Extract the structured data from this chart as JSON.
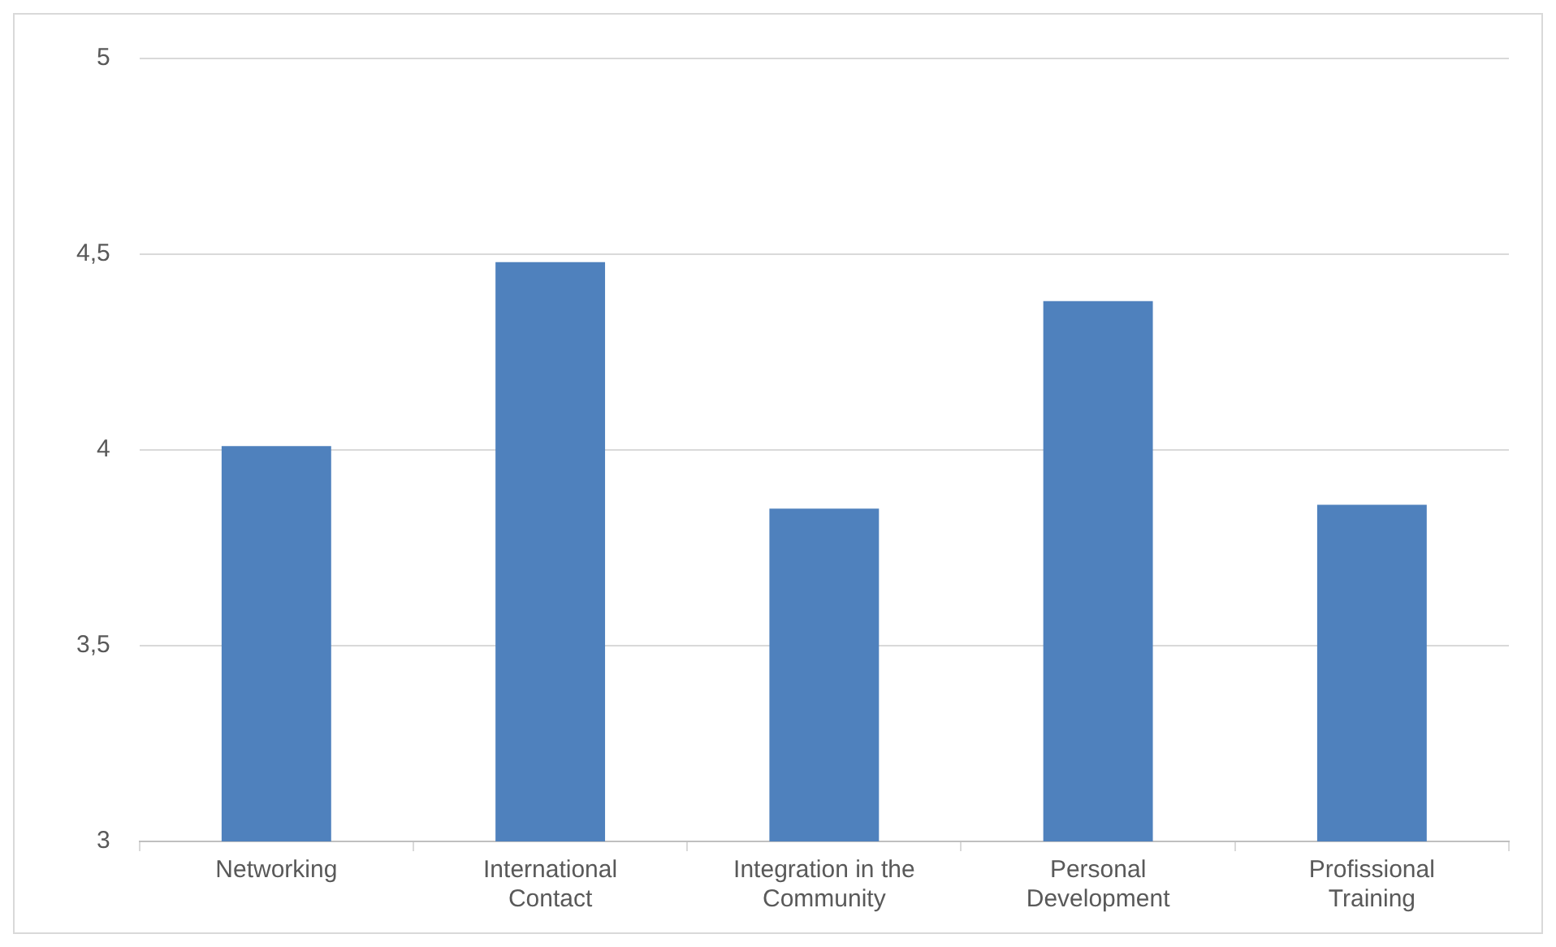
{
  "chart_data": {
    "type": "bar",
    "categories": [
      "Networking",
      "International Contact",
      "Integration in the Community",
      "Personal Development",
      "Profissional Training"
    ],
    "values": [
      4.01,
      4.48,
      3.85,
      4.38,
      3.86
    ],
    "color": "#4f81bd",
    "ylim": [
      3,
      5
    ],
    "yticks": [
      3,
      {
        "value": 3.5,
        "label": "3,5"
      },
      4,
      {
        "value": 4.5,
        "label": "4,5"
      },
      5
    ],
    "grid": "y"
  }
}
